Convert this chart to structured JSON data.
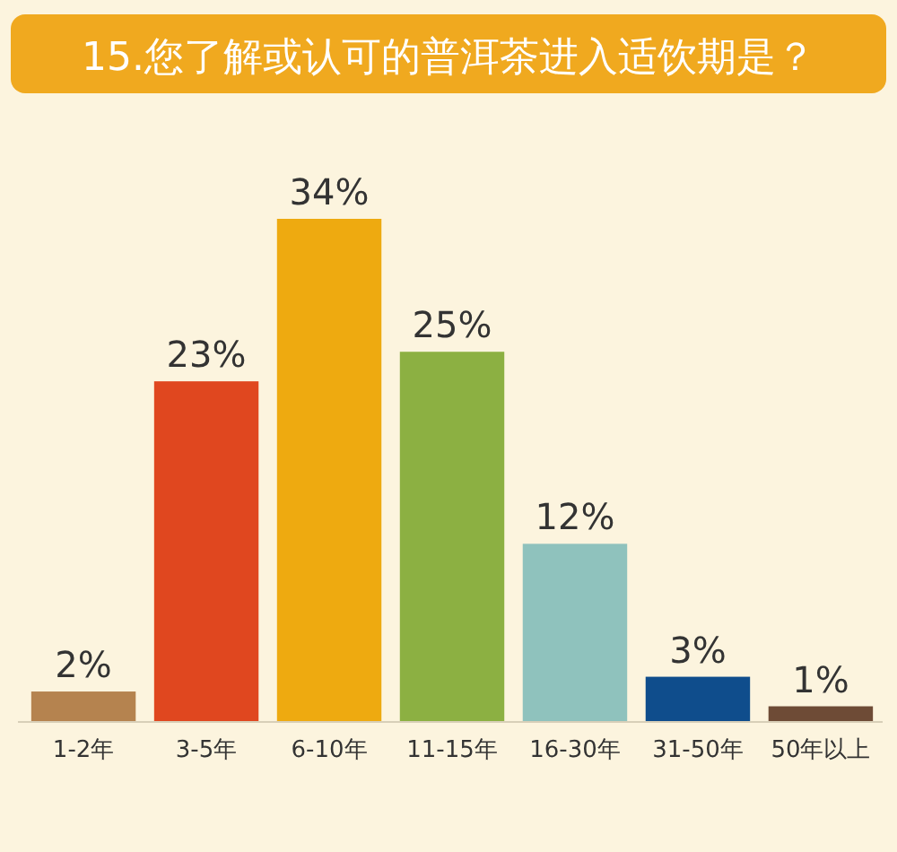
{
  "chart_data": {
    "type": "bar",
    "title": "15.您了解或认可的普洱茶进入适饮期是？",
    "categories": [
      "1-2年",
      "3-5年",
      "6-10年",
      "11-15年",
      "16-30年",
      "31-50年",
      "50年以上"
    ],
    "values": [
      2,
      23,
      34,
      25,
      12,
      3,
      1
    ],
    "colors": [
      "#b5834f",
      "#e0471f",
      "#eeaa10",
      "#8cb042",
      "#8fc2bd",
      "#0f4d8c",
      "#6e4b36"
    ],
    "value_labels": [
      "2%",
      "23%",
      "34%",
      "25%",
      "12%",
      "3%",
      "1%"
    ]
  }
}
